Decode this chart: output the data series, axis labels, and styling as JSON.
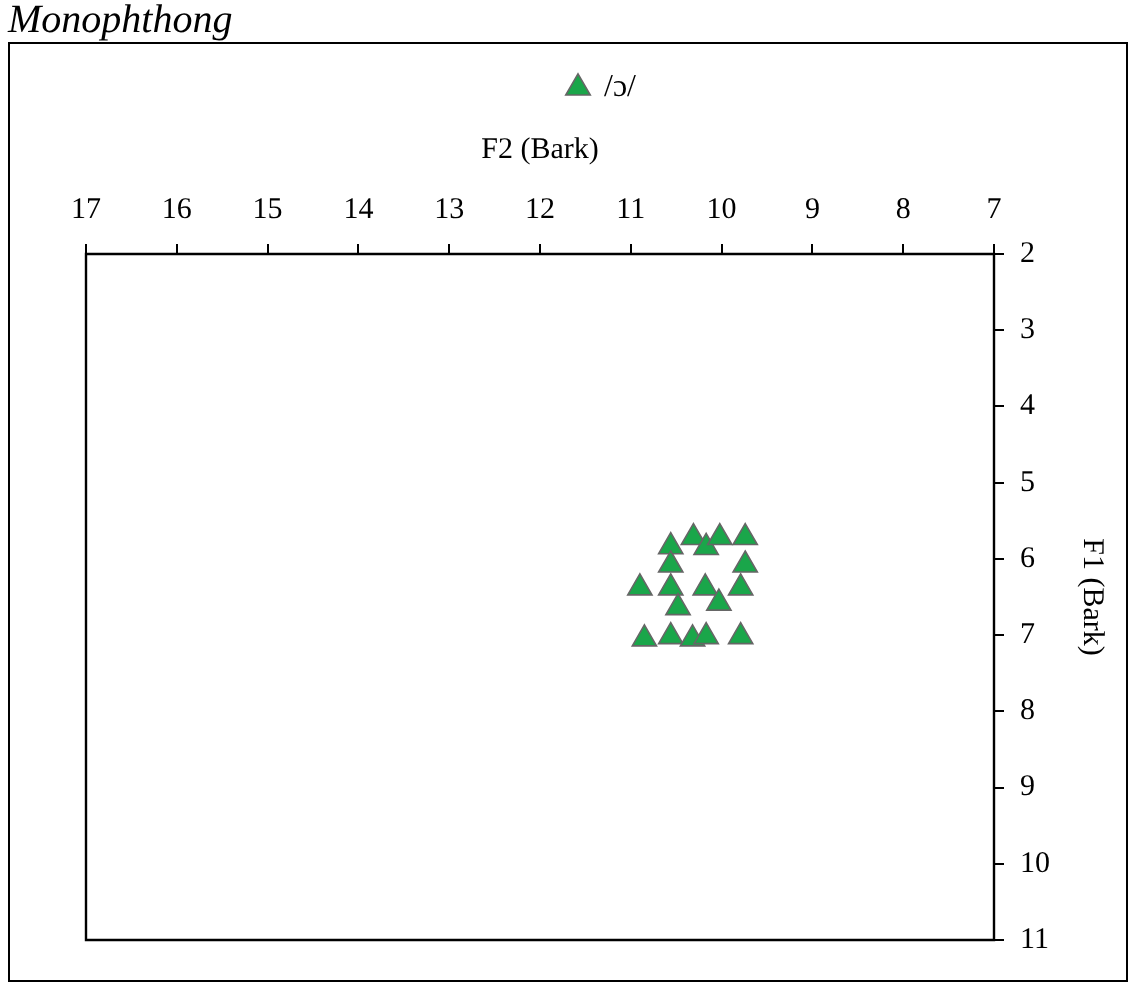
{
  "chart_data": {
    "type": "scatter",
    "title": "Monophthong",
    "xlabel": "F2 (Bark)",
    "ylabel": "F1 (Bark)",
    "series": [
      {
        "name": "/ɔ/",
        "color": "#1aa64a",
        "marker": "triangle",
        "x": [
          10.56,
          10.31,
          10.17,
          10.02,
          9.74,
          10.56,
          9.74,
          10.9,
          10.56,
          10.18,
          9.79,
          10.48,
          10.03,
          10.85,
          10.56,
          10.32,
          10.17,
          9.79
        ],
        "values": [
          5.84,
          5.72,
          5.85,
          5.72,
          5.72,
          6.08,
          6.08,
          6.38,
          6.38,
          6.38,
          6.38,
          6.64,
          6.58,
          7.05,
          7.02,
          7.05,
          7.02,
          7.02
        ]
      }
    ],
    "xlim": [
      17,
      7
    ],
    "xticks": [
      17,
      16,
      15,
      14,
      13,
      12,
      11,
      10,
      9,
      8,
      7
    ],
    "ylim": [
      11,
      2
    ],
    "yticks": [
      2,
      3,
      4,
      5,
      6,
      7,
      8,
      9,
      10,
      11
    ],
    "legend": "top"
  }
}
